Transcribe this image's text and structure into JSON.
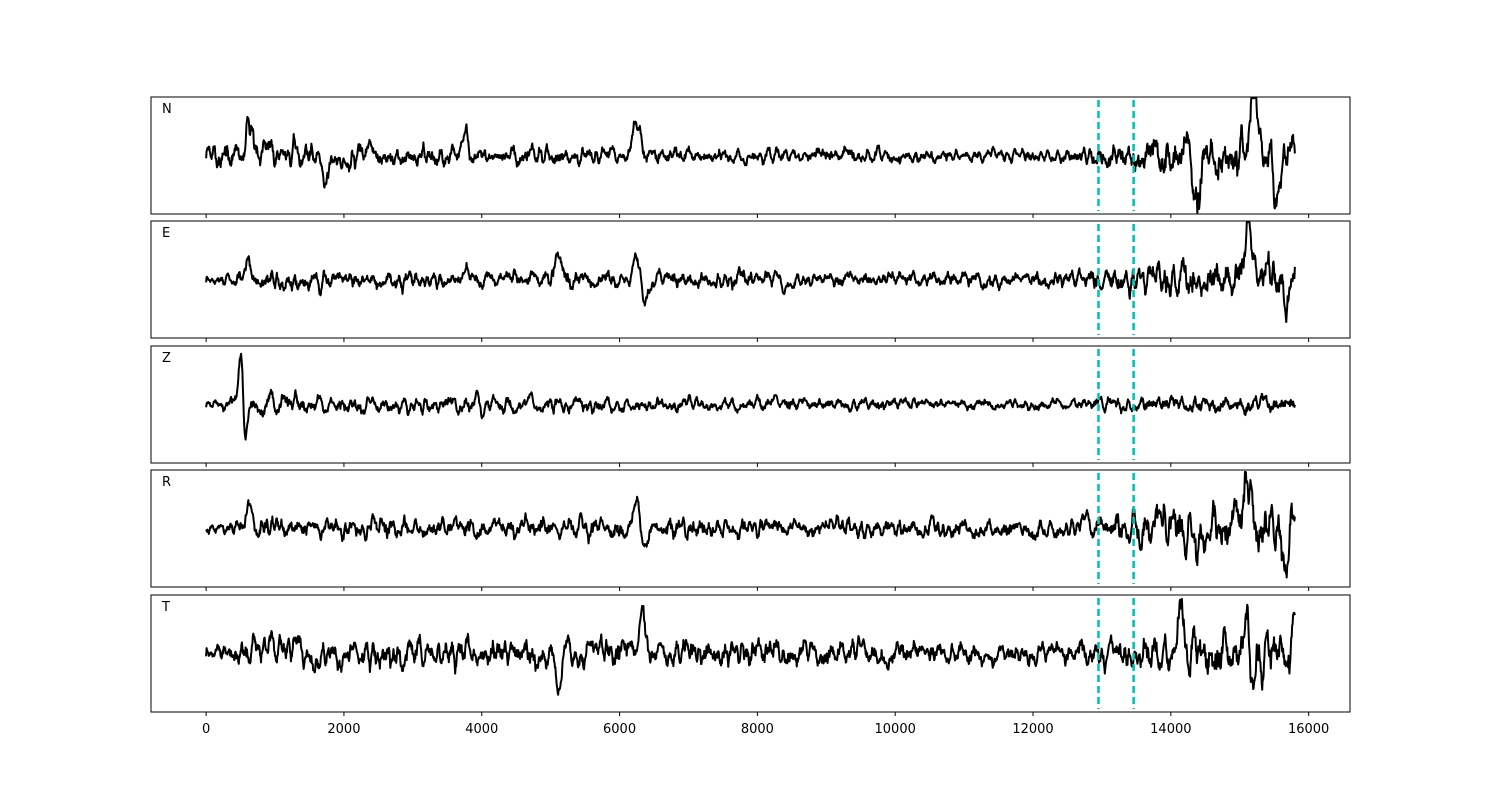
{
  "chart_data": {
    "type": "line",
    "xlim": [
      -800,
      16600
    ],
    "x_ticks": [
      0,
      2000,
      4000,
      6000,
      8000,
      10000,
      12000,
      14000,
      16000
    ],
    "x_tick_labels": [
      "0",
      "2000",
      "4000",
      "6000",
      "8000",
      "10000",
      "12000",
      "14000",
      "16000"
    ],
    "x_end": 15800,
    "grid": false,
    "colors": {
      "trace": "#000000",
      "marker": "#00c5b5",
      "frame": "#000000"
    },
    "vertical_markers": [
      12950,
      13460
    ],
    "panels": [
      {
        "label": "N",
        "ylim": [
          -1.05,
          1.05
        ],
        "events": [
          {
            "x": 630,
            "amp": 0.65,
            "width": 60
          },
          {
            "x": 1720,
            "amp": -0.6,
            "width": 50
          },
          {
            "x": 3750,
            "amp": 0.55,
            "width": 50
          },
          {
            "x": 6250,
            "amp": 0.55,
            "width": 90
          },
          {
            "x": 14400,
            "amp": -0.85,
            "width": 60
          },
          {
            "x": 15200,
            "amp": 0.9,
            "width": 70
          },
          {
            "x": 15540,
            "amp": -0.9,
            "width": 60
          }
        ],
        "segments": [
          [
            0,
            0.42
          ],
          [
            6400,
            0.25
          ],
          [
            12500,
            0.2
          ],
          [
            13200,
            0.45
          ],
          [
            14200,
            0.75
          ],
          [
            15800,
            0.75
          ]
        ]
      },
      {
        "label": "E",
        "ylim": [
          -1.05,
          1.05
        ],
        "events": [
          {
            "x": 620,
            "amp": 0.5,
            "width": 50
          },
          {
            "x": 5120,
            "amp": 0.55,
            "width": 60
          },
          {
            "x": 6260,
            "amp": 0.5,
            "width": 70
          },
          {
            "x": 6350,
            "amp": -0.55,
            "width": 80
          },
          {
            "x": 15120,
            "amp": 0.95,
            "width": 60
          },
          {
            "x": 15680,
            "amp": -0.75,
            "width": 50
          }
        ],
        "segments": [
          [
            0,
            0.1
          ],
          [
            600,
            0.32
          ],
          [
            6400,
            0.28
          ],
          [
            12500,
            0.25
          ],
          [
            13200,
            0.45
          ],
          [
            14200,
            0.65
          ],
          [
            15800,
            0.7
          ]
        ]
      },
      {
        "label": "Z",
        "ylim": [
          -1.05,
          1.05
        ],
        "events": [
          {
            "x": 510,
            "amp": 0.95,
            "width": 45
          },
          {
            "x": 560,
            "amp": -0.8,
            "width": 40
          },
          {
            "x": 3950,
            "amp": 0.35,
            "width": 50
          },
          {
            "x": 3980,
            "amp": -0.4,
            "width": 50
          }
        ],
        "segments": [
          [
            0,
            0.1
          ],
          [
            600,
            0.28
          ],
          [
            6000,
            0.2
          ],
          [
            12500,
            0.15
          ],
          [
            13500,
            0.22
          ],
          [
            15800,
            0.25
          ]
        ]
      },
      {
        "label": "R",
        "ylim": [
          -1.05,
          1.05
        ],
        "events": [
          {
            "x": 630,
            "amp": 0.6,
            "width": 50
          },
          {
            "x": 6250,
            "amp": 0.65,
            "width": 70
          },
          {
            "x": 6350,
            "amp": -0.3,
            "width": 70
          },
          {
            "x": 14380,
            "amp": -0.75,
            "width": 60
          },
          {
            "x": 15110,
            "amp": 0.95,
            "width": 60
          },
          {
            "x": 15670,
            "amp": -0.75,
            "width": 50
          }
        ],
        "segments": [
          [
            0,
            0.15
          ],
          [
            600,
            0.3
          ],
          [
            6400,
            0.3
          ],
          [
            12500,
            0.25
          ],
          [
            13200,
            0.45
          ],
          [
            14200,
            0.7
          ],
          [
            15800,
            0.7
          ]
        ]
      },
      {
        "label": "T",
        "ylim": [
          -1.05,
          1.05
        ],
        "events": [
          {
            "x": 5100,
            "amp": -0.75,
            "width": 50
          },
          {
            "x": 6320,
            "amp": 0.85,
            "width": 70
          },
          {
            "x": 14150,
            "amp": 0.85,
            "width": 60
          },
          {
            "x": 15120,
            "amp": 0.9,
            "width": 60
          },
          {
            "x": 15170,
            "amp": -0.8,
            "width": 60
          },
          {
            "x": 15800,
            "amp": 0.75,
            "width": 40
          }
        ],
        "segments": [
          [
            0,
            0.15
          ],
          [
            600,
            0.45
          ],
          [
            6400,
            0.4
          ],
          [
            12500,
            0.3
          ],
          [
            13200,
            0.45
          ],
          [
            14200,
            0.65
          ],
          [
            15800,
            0.65
          ]
        ]
      }
    ]
  }
}
